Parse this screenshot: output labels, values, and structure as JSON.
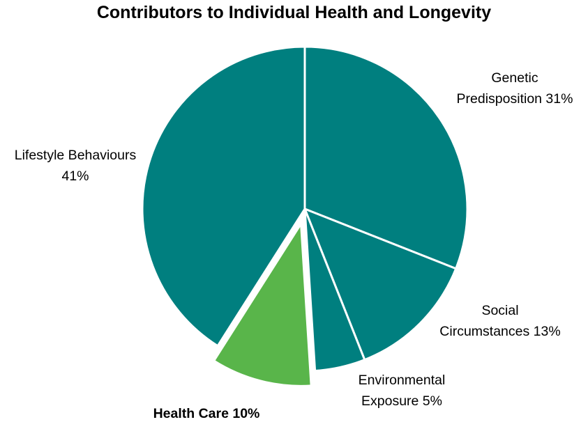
{
  "chart_data": {
    "type": "pie",
    "title": "Contributors to Individual Health and Longevity",
    "slices": [
      {
        "name": "Genetic Predisposition",
        "value": 31,
        "label_lines": [
          "Genetic",
          "Predisposition 31%"
        ],
        "color": "#007f7f"
      },
      {
        "name": "Social Circumstances",
        "value": 13,
        "label_lines": [
          "Social",
          "Circumstances 13%"
        ],
        "color": "#007f7f"
      },
      {
        "name": "Environmental Exposure",
        "value": 5,
        "label_lines": [
          "Environmental",
          "Exposure 5%"
        ],
        "color": "#007f7f"
      },
      {
        "name": "Health Care",
        "value": 10,
        "label_lines": [
          "Health Care 10%"
        ],
        "color": "#59b54a",
        "exploded": true,
        "bold_label": true
      },
      {
        "name": "Lifestyle Behaviours",
        "value": 41,
        "label_lines": [
          "Lifestyle Behaviours",
          "41%"
        ],
        "color": "#007f7f"
      }
    ],
    "start_angle": "12 o'clock",
    "direction": "clockwise",
    "legend": "none"
  }
}
